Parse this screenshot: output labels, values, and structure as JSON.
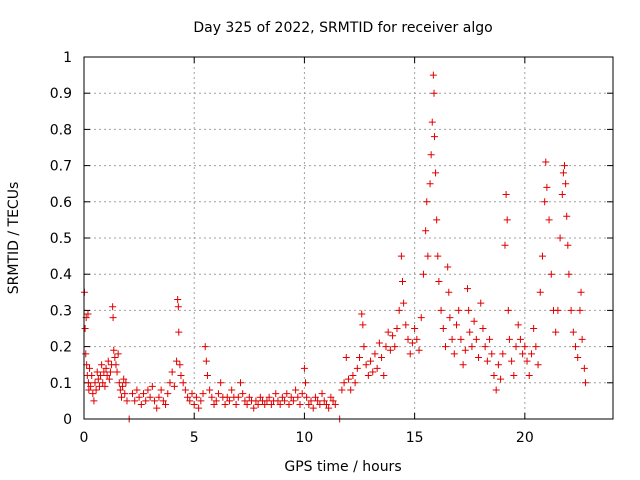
{
  "chart_data": {
    "type": "scatter",
    "title": "Day 325 of 2022, SRMTID for receiver algo",
    "xlabel": "GPS time / hours",
    "ylabel": "SRMTID / TECUs",
    "xlim": [
      0,
      24
    ],
    "ylim": [
      0,
      1
    ],
    "xticks": [
      0,
      5,
      10,
      15,
      20
    ],
    "xtick_labels": [
      "0",
      "5",
      "10",
      "15",
      "20"
    ],
    "yticks": [
      0,
      0.1,
      0.2,
      0.3,
      0.4,
      0.5,
      0.6,
      0.7,
      0.8,
      0.9,
      1
    ],
    "ytick_labels": [
      "0",
      "0.1",
      "0.2",
      "0.3",
      "0.4",
      "0.5",
      "0.6",
      "0.7",
      "0.8",
      "0.9",
      "1"
    ],
    "grid": true,
    "marker": "+",
    "color": "#e00000",
    "series": [
      {
        "name": "SRMTID",
        "points": [
          [
            0.02,
            0.35
          ],
          [
            0.05,
            0.25
          ],
          [
            0.08,
            0.18
          ],
          [
            0.1,
            0.28
          ],
          [
            0.12,
            0.15
          ],
          [
            0.15,
            0.12
          ],
          [
            0.18,
            0.29
          ],
          [
            0.2,
            0.1
          ],
          [
            0.22,
            0.08
          ],
          [
            0.25,
            0.14
          ],
          [
            0.3,
            0.09
          ],
          [
            0.35,
            0.12
          ],
          [
            0.4,
            0.07
          ],
          [
            0.45,
            0.05
          ],
          [
            0.5,
            0.1
          ],
          [
            0.55,
            0.08
          ],
          [
            0.6,
            0.13
          ],
          [
            0.65,
            0.11
          ],
          [
            0.7,
            0.09
          ],
          [
            0.75,
            0.12
          ],
          [
            0.8,
            0.15
          ],
          [
            0.85,
            0.1
          ],
          [
            0.9,
            0.13
          ],
          [
            0.95,
            0.09
          ],
          [
            1.0,
            0.14
          ],
          [
            1.05,
            0.12
          ],
          [
            1.1,
            0.16
          ],
          [
            1.15,
            0.11
          ],
          [
            1.2,
            0.13
          ],
          [
            1.25,
            0.15
          ],
          [
            1.3,
            0.31
          ],
          [
            1.32,
            0.28
          ],
          [
            1.35,
            0.19
          ],
          [
            1.4,
            0.17
          ],
          [
            1.45,
            0.15
          ],
          [
            1.5,
            0.13
          ],
          [
            1.55,
            0.18
          ],
          [
            1.6,
            0.1
          ],
          [
            1.65,
            0.08
          ],
          [
            1.7,
            0.06
          ],
          [
            1.75,
            0.09
          ],
          [
            1.8,
            0.11
          ],
          [
            1.85,
            0.07
          ],
          [
            1.9,
            0.1
          ],
          [
            1.95,
            0.05
          ],
          [
            2.05,
            0.0
          ],
          [
            2.2,
            0.07
          ],
          [
            2.3,
            0.05
          ],
          [
            2.4,
            0.08
          ],
          [
            2.5,
            0.06
          ],
          [
            2.6,
            0.04
          ],
          [
            2.7,
            0.07
          ],
          [
            2.8,
            0.05
          ],
          [
            2.9,
            0.08
          ],
          [
            3.0,
            0.06
          ],
          [
            3.1,
            0.09
          ],
          [
            3.2,
            0.05
          ],
          [
            3.3,
            0.03
          ],
          [
            3.4,
            0.06
          ],
          [
            3.5,
            0.08
          ],
          [
            3.6,
            0.05
          ],
          [
            3.7,
            0.04
          ],
          [
            3.8,
            0.07
          ],
          [
            3.9,
            0.1
          ],
          [
            4.0,
            0.13
          ],
          [
            4.1,
            0.09
          ],
          [
            4.2,
            0.16
          ],
          [
            4.25,
            0.33
          ],
          [
            4.28,
            0.31
          ],
          [
            4.3,
            0.24
          ],
          [
            4.35,
            0.15
          ],
          [
            4.4,
            0.12
          ],
          [
            4.5,
            0.1
          ],
          [
            4.6,
            0.08
          ],
          [
            4.7,
            0.06
          ],
          [
            4.8,
            0.05
          ],
          [
            4.9,
            0.07
          ],
          [
            5.0,
            0.04
          ],
          [
            5.1,
            0.06
          ],
          [
            5.2,
            0.03
          ],
          [
            5.3,
            0.05
          ],
          [
            5.4,
            0.07
          ],
          [
            5.5,
            0.2
          ],
          [
            5.55,
            0.16
          ],
          [
            5.6,
            0.12
          ],
          [
            5.7,
            0.08
          ],
          [
            5.8,
            0.06
          ],
          [
            5.9,
            0.04
          ],
          [
            6.0,
            0.05
          ],
          [
            6.1,
            0.07
          ],
          [
            6.2,
            0.1
          ],
          [
            6.3,
            0.06
          ],
          [
            6.4,
            0.04
          ],
          [
            6.5,
            0.06
          ],
          [
            6.6,
            0.05
          ],
          [
            6.7,
            0.08
          ],
          [
            6.8,
            0.06
          ],
          [
            6.9,
            0.04
          ],
          [
            7.0,
            0.06
          ],
          [
            7.1,
            0.1
          ],
          [
            7.2,
            0.07
          ],
          [
            7.3,
            0.05
          ],
          [
            7.4,
            0.04
          ],
          [
            7.5,
            0.06
          ],
          [
            7.6,
            0.05
          ],
          [
            7.7,
            0.03
          ],
          [
            7.8,
            0.05
          ],
          [
            7.9,
            0.04
          ],
          [
            8.0,
            0.06
          ],
          [
            8.1,
            0.05
          ],
          [
            8.2,
            0.04
          ],
          [
            8.3,
            0.05
          ],
          [
            8.4,
            0.06
          ],
          [
            8.5,
            0.04
          ],
          [
            8.6,
            0.05
          ],
          [
            8.7,
            0.07
          ],
          [
            8.8,
            0.05
          ],
          [
            8.9,
            0.04
          ],
          [
            9.0,
            0.06
          ],
          [
            9.1,
            0.05
          ],
          [
            9.2,
            0.07
          ],
          [
            9.3,
            0.04
          ],
          [
            9.4,
            0.06
          ],
          [
            9.5,
            0.05
          ],
          [
            9.6,
            0.08
          ],
          [
            9.7,
            0.06
          ],
          [
            9.8,
            0.04
          ],
          [
            9.9,
            0.07
          ],
          [
            10.0,
            0.14
          ],
          [
            10.05,
            0.1
          ],
          [
            10.1,
            0.06
          ],
          [
            10.2,
            0.04
          ],
          [
            10.3,
            0.05
          ],
          [
            10.4,
            0.03
          ],
          [
            10.5,
            0.06
          ],
          [
            10.6,
            0.05
          ],
          [
            10.7,
            0.04
          ],
          [
            10.8,
            0.07
          ],
          [
            10.9,
            0.05
          ],
          [
            11.0,
            0.04
          ],
          [
            11.1,
            0.03
          ],
          [
            11.2,
            0.06
          ],
          [
            11.3,
            0.05
          ],
          [
            11.4,
            0.04
          ],
          [
            11.6,
            0.0
          ],
          [
            11.7,
            0.08
          ],
          [
            11.8,
            0.1
          ],
          [
            11.9,
            0.17
          ],
          [
            12.0,
            0.11
          ],
          [
            12.1,
            0.08
          ],
          [
            12.2,
            0.12
          ],
          [
            12.3,
            0.1
          ],
          [
            12.4,
            0.14
          ],
          [
            12.5,
            0.17
          ],
          [
            12.6,
            0.29
          ],
          [
            12.65,
            0.26
          ],
          [
            12.7,
            0.2
          ],
          [
            12.8,
            0.15
          ],
          [
            12.9,
            0.12
          ],
          [
            13.0,
            0.16
          ],
          [
            13.1,
            0.13
          ],
          [
            13.2,
            0.18
          ],
          [
            13.3,
            0.14
          ],
          [
            13.4,
            0.21
          ],
          [
            13.5,
            0.17
          ],
          [
            13.6,
            0.12
          ],
          [
            13.7,
            0.2
          ],
          [
            13.8,
            0.24
          ],
          [
            13.9,
            0.19
          ],
          [
            14.0,
            0.23
          ],
          [
            14.1,
            0.2
          ],
          [
            14.2,
            0.25
          ],
          [
            14.3,
            0.3
          ],
          [
            14.4,
            0.45
          ],
          [
            14.45,
            0.38
          ],
          [
            14.5,
            0.32
          ],
          [
            14.6,
            0.26
          ],
          [
            14.7,
            0.22
          ],
          [
            14.8,
            0.18
          ],
          [
            14.9,
            0.21
          ],
          [
            15.0,
            0.25
          ],
          [
            15.1,
            0.22
          ],
          [
            15.2,
            0.19
          ],
          [
            15.3,
            0.28
          ],
          [
            15.4,
            0.4
          ],
          [
            15.5,
            0.52
          ],
          [
            15.55,
            0.6
          ],
          [
            15.6,
            0.45
          ],
          [
            15.7,
            0.65
          ],
          [
            15.75,
            0.73
          ],
          [
            15.8,
            0.82
          ],
          [
            15.85,
            0.95
          ],
          [
            15.88,
            0.9
          ],
          [
            15.9,
            0.78
          ],
          [
            15.95,
            0.68
          ],
          [
            16.0,
            0.55
          ],
          [
            16.05,
            0.45
          ],
          [
            16.1,
            0.38
          ],
          [
            16.2,
            0.3
          ],
          [
            16.3,
            0.25
          ],
          [
            16.4,
            0.2
          ],
          [
            16.5,
            0.42
          ],
          [
            16.55,
            0.35
          ],
          [
            16.6,
            0.28
          ],
          [
            16.7,
            0.22
          ],
          [
            16.8,
            0.18
          ],
          [
            16.9,
            0.26
          ],
          [
            17.0,
            0.3
          ],
          [
            17.1,
            0.22
          ],
          [
            17.2,
            0.15
          ],
          [
            17.3,
            0.19
          ],
          [
            17.4,
            0.36
          ],
          [
            17.45,
            0.3
          ],
          [
            17.5,
            0.24
          ],
          [
            17.6,
            0.2
          ],
          [
            17.7,
            0.27
          ],
          [
            17.8,
            0.22
          ],
          [
            17.9,
            0.17
          ],
          [
            18.0,
            0.32
          ],
          [
            18.1,
            0.25
          ],
          [
            18.2,
            0.2
          ],
          [
            18.3,
            0.16
          ],
          [
            18.4,
            0.22
          ],
          [
            18.5,
            0.18
          ],
          [
            18.6,
            0.12
          ],
          [
            18.7,
            0.08
          ],
          [
            18.8,
            0.15
          ],
          [
            18.9,
            0.11
          ],
          [
            19.0,
            0.18
          ],
          [
            19.1,
            0.48
          ],
          [
            19.15,
            0.62
          ],
          [
            19.2,
            0.55
          ],
          [
            19.25,
            0.3
          ],
          [
            19.3,
            0.22
          ],
          [
            19.4,
            0.16
          ],
          [
            19.5,
            0.12
          ],
          [
            19.6,
            0.2
          ],
          [
            19.7,
            0.26
          ],
          [
            19.8,
            0.22
          ],
          [
            19.9,
            0.18
          ],
          [
            20.0,
            0.2
          ],
          [
            20.1,
            0.16
          ],
          [
            20.2,
            0.12
          ],
          [
            20.3,
            0.18
          ],
          [
            20.4,
            0.25
          ],
          [
            20.5,
            0.2
          ],
          [
            20.6,
            0.15
          ],
          [
            20.7,
            0.35
          ],
          [
            20.8,
            0.45
          ],
          [
            20.9,
            0.6
          ],
          [
            20.95,
            0.71
          ],
          [
            21.0,
            0.64
          ],
          [
            21.1,
            0.55
          ],
          [
            21.2,
            0.4
          ],
          [
            21.3,
            0.3
          ],
          [
            21.4,
            0.24
          ],
          [
            21.5,
            0.3
          ],
          [
            21.6,
            0.5
          ],
          [
            21.7,
            0.62
          ],
          [
            21.75,
            0.68
          ],
          [
            21.8,
            0.7
          ],
          [
            21.85,
            0.65
          ],
          [
            21.9,
            0.56
          ],
          [
            21.95,
            0.48
          ],
          [
            22.0,
            0.4
          ],
          [
            22.1,
            0.3
          ],
          [
            22.2,
            0.24
          ],
          [
            22.3,
            0.2
          ],
          [
            22.4,
            0.17
          ],
          [
            22.5,
            0.3
          ],
          [
            22.55,
            0.35
          ],
          [
            22.6,
            0.22
          ],
          [
            22.7,
            0.14
          ],
          [
            22.75,
            0.1
          ]
        ]
      }
    ]
  }
}
